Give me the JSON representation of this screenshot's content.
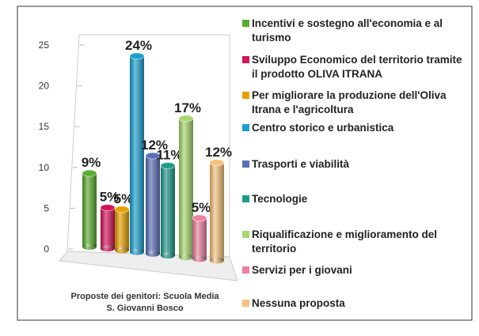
{
  "chart_data": {
    "type": "bar3d",
    "caption": "Proposte dei genitori: Scuola Media S. Giovanni Bosco",
    "categories": [
      "Incentivi e sostegno all'economia e al turismo",
      "Sviluppo Economico del territorio tramite il prodotto OLIVA ITRANA",
      "Per migliorare la produzione dell'Oliva Itrana e l'agricoltura",
      "Centro storico e urbanistica",
      "Trasporti e viabilità",
      "Tecnologie",
      "Riqualificazione e miglioramento del territorio",
      "Servizi per i giovani",
      "Nessuna proposta"
    ],
    "values": [
      9,
      5,
      5,
      24,
      12,
      11,
      17,
      5,
      12
    ],
    "value_labels": [
      "9%",
      "5%",
      "5%",
      "24%",
      "12%",
      "11%",
      "17%",
      "5%",
      "12%"
    ],
    "colors": [
      "#5aac2e",
      "#d4145a",
      "#e8a000",
      "#1aa0d0",
      "#5b6fb8",
      "#1e9a8a",
      "#a6d86e",
      "#ee7fa0",
      "#f5c27a"
    ],
    "ylim": [
      0,
      25
    ],
    "yticks": [
      0,
      5,
      10,
      15,
      20,
      25
    ]
  }
}
